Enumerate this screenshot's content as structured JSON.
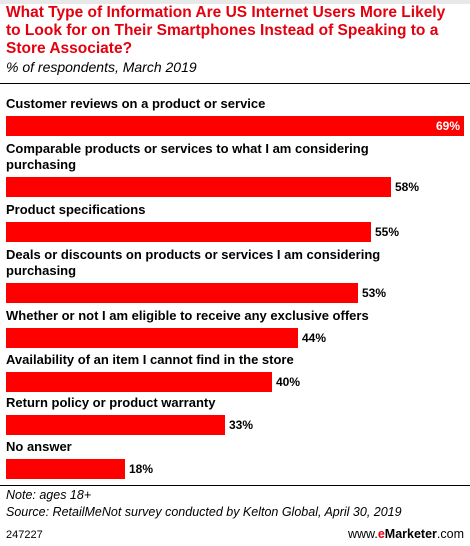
{
  "title": "What Type of Information Are US Internet Users More Likely to Look for on Their Smartphones Instead of Speaking to a Store Associate?",
  "subtitle": "% of respondents, March 2019",
  "colors": {
    "bar": "#ff0000",
    "title": "#e3000f"
  },
  "chart_data": {
    "type": "bar",
    "orientation": "horizontal",
    "title": "What Type of Information Are US Internet Users More Likely to Look for on Their Smartphones Instead of Speaking to a Store Associate?",
    "subtitle": "% of respondents, March 2019",
    "categories": [
      "Customer reviews on a product or service",
      "Comparable products or services to what I am considering purchasing",
      "Product specifications",
      "Deals or discounts on products or services I am considering purchasing",
      "Whether or not I am eligible to receive any exclusive offers",
      "Availability of an item I cannot find in the store",
      "Return policy or product warranty",
      "No answer"
    ],
    "values": [
      69,
      58,
      55,
      53,
      44,
      40,
      33,
      18
    ],
    "value_labels": [
      "69%",
      "58%",
      "55%",
      "53%",
      "44%",
      "40%",
      "33%",
      "18%"
    ],
    "unit": "%",
    "xlim": [
      0,
      69
    ],
    "grid": false,
    "legend": "none"
  },
  "footer": {
    "note": "Note: ages 18+",
    "source": "Source: RetailMeNot survey conducted by Kelton Global, April 30, 2019",
    "code": "247227",
    "brand_e": "e",
    "brand_rest": "Marketer",
    "brand_suffix": ".com",
    "brand_www": "www."
  }
}
